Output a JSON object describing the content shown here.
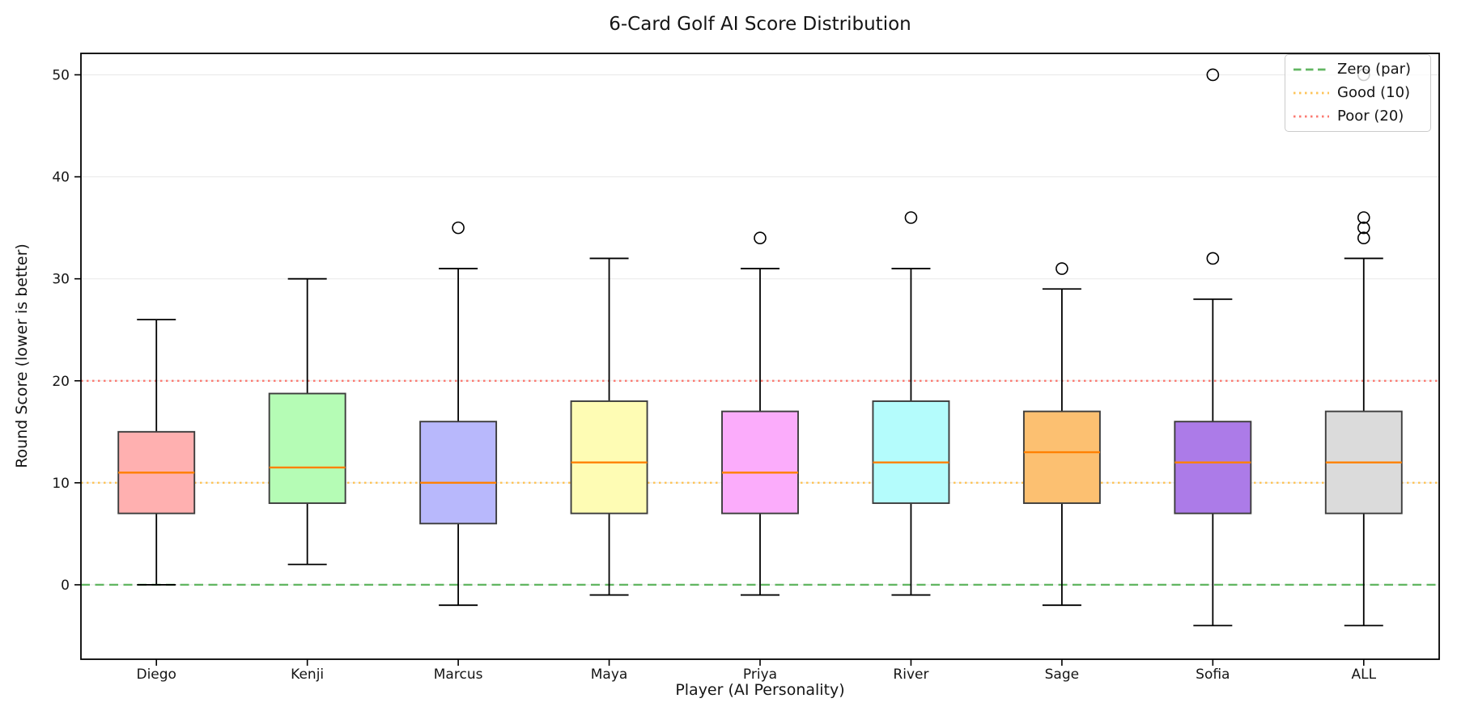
{
  "chart_data": {
    "type": "box",
    "title": "6-Card Golf AI Score Distribution",
    "xlabel": "Player (AI Personality)",
    "ylabel": "Round Score (lower is better)",
    "categories": [
      "Diego",
      "Kenji",
      "Marcus",
      "Maya",
      "Priya",
      "River",
      "Sage",
      "Sofia",
      "ALL"
    ],
    "yticks": [
      0,
      10,
      20,
      30,
      40,
      50
    ],
    "ylim": [
      -7.3,
      52.1
    ],
    "grid": "horizontal-light",
    "legend_position": "upper-right",
    "boxes": [
      {
        "player": "Diego",
        "whisker_low": 0,
        "q1": 7,
        "median": 11,
        "q3": 15,
        "whisker_high": 26,
        "outliers": [],
        "fill": "#ffb0b0"
      },
      {
        "player": "Kenji",
        "whisker_low": 2,
        "q1": 8,
        "median": 11.5,
        "q3": 18.75,
        "whisker_high": 30,
        "outliers": [],
        "fill": "#b5fcb5"
      },
      {
        "player": "Marcus",
        "whisker_low": -2,
        "q1": 6,
        "median": 10,
        "q3": 16,
        "whisker_high": 31,
        "outliers": [
          35
        ],
        "fill": "#b8b8fc"
      },
      {
        "player": "Maya",
        "whisker_low": -1,
        "q1": 7,
        "median": 12,
        "q3": 18,
        "whisker_high": 32,
        "outliers": [],
        "fill": "#fefcb4"
      },
      {
        "player": "Priya",
        "whisker_low": -1,
        "q1": 7,
        "median": 11,
        "q3": 17,
        "whisker_high": 31,
        "outliers": [
          34
        ],
        "fill": "#fbacfb"
      },
      {
        "player": "River",
        "whisker_low": -1,
        "q1": 8,
        "median": 12,
        "q3": 18,
        "whisker_high": 31,
        "outliers": [
          36
        ],
        "fill": "#b4fcfc"
      },
      {
        "player": "Sage",
        "whisker_low": -2,
        "q1": 8,
        "median": 13,
        "q3": 17,
        "whisker_high": 29,
        "outliers": [
          31
        ],
        "fill": "#fcc071"
      },
      {
        "player": "Sofia",
        "whisker_low": -4,
        "q1": 7,
        "median": 12,
        "q3": 16,
        "whisker_high": 28,
        "outliers": [
          32,
          50
        ],
        "fill": "#ac7be8"
      },
      {
        "player": "ALL",
        "whisker_low": -4,
        "q1": 7,
        "median": 12,
        "q3": 17,
        "whisker_high": 32,
        "outliers": [
          34,
          35,
          36,
          50
        ],
        "fill": "#dbdbdb"
      }
    ],
    "ref_lines": [
      {
        "label": "Zero (par)",
        "value": 0,
        "color": "#63b663",
        "style": "dashed"
      },
      {
        "label": "Good (10)",
        "value": 10,
        "color": "#fec458",
        "style": "dotted"
      },
      {
        "label": "Poor (20)",
        "value": 20,
        "color": "#fb7b72",
        "style": "dotted"
      }
    ],
    "colors": {
      "median": "#ff8103",
      "box_edge": "#3d3d3d",
      "whisker": "#000000",
      "grid": "#ebebeb",
      "spine": "#000000",
      "legend_border": "#cbcbcb"
    }
  }
}
